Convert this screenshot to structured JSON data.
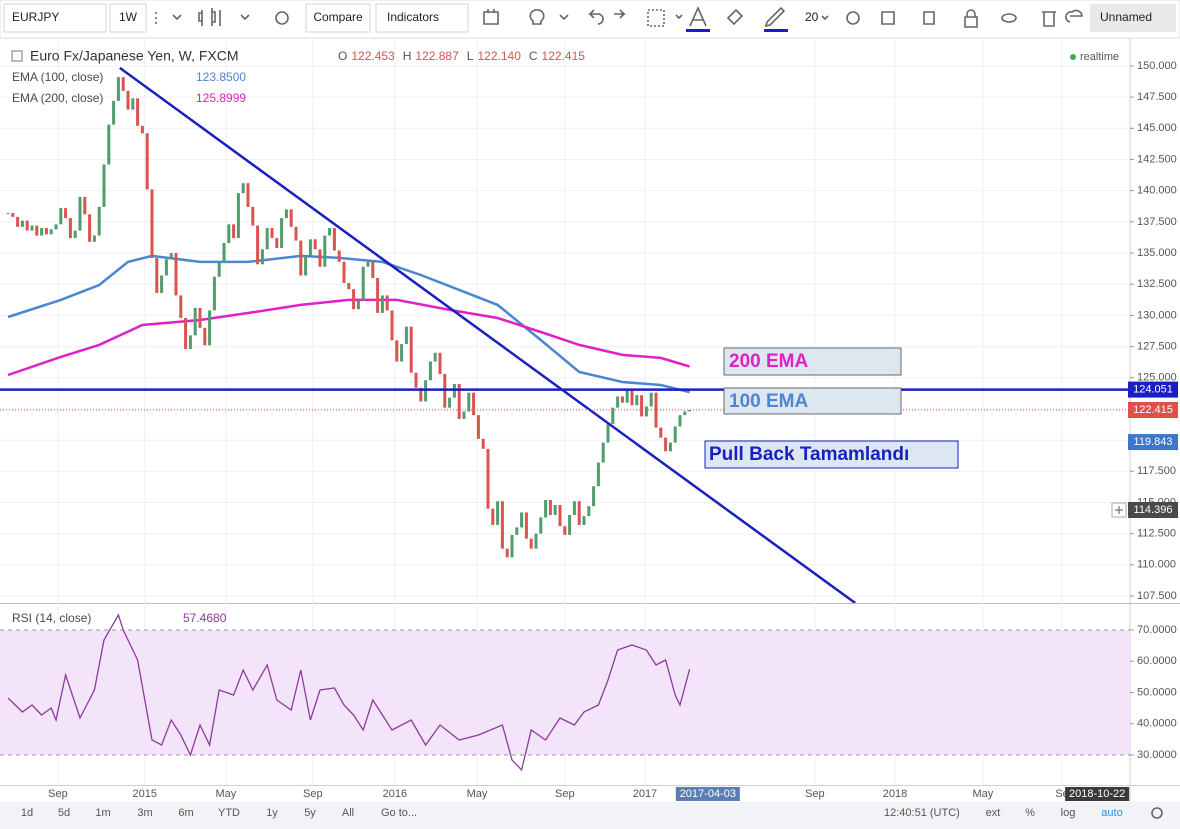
{
  "toolbar": {
    "symbol": "EURJPY",
    "interval": "1W",
    "compare": "Compare",
    "indicators": "Indicators",
    "size": "20",
    "layout": "Unnamed"
  },
  "chart_data": [
    {
      "type": "candlestick",
      "title": "Euro Fx/Japanese Yen, W, FXCM",
      "status": "realtime",
      "ohlc_names": [
        "O",
        "H",
        "L",
        "C"
      ],
      "ohlc": [
        "122.453",
        "122.887",
        "122.140",
        "122.415"
      ],
      "up_color": "#4f9c6c",
      "down_color": "#d9534f",
      "x": [
        0,
        1,
        2,
        3,
        4,
        5,
        6,
        7,
        8,
        9,
        10,
        11,
        12,
        13,
        14,
        15,
        16,
        17,
        18,
        19,
        20,
        21,
        22,
        23,
        24,
        25,
        26,
        27,
        28,
        29,
        30,
        31,
        32,
        33,
        34,
        35,
        36,
        37,
        38,
        39,
        40,
        41,
        42,
        43,
        44,
        45,
        46,
        47,
        48,
        49,
        50,
        51,
        52,
        53,
        54,
        55,
        56,
        57,
        58,
        59,
        60,
        61,
        62,
        63,
        64,
        65,
        66,
        67,
        68,
        69,
        70,
        71,
        72,
        73,
        74,
        75,
        76,
        77,
        78,
        79,
        80,
        81,
        82,
        83,
        84,
        85,
        86,
        87,
        88,
        89,
        90,
        91,
        92,
        93,
        94,
        95,
        96,
        97,
        98,
        99,
        100,
        101,
        102,
        103,
        104,
        105,
        106,
        107,
        108,
        109,
        110,
        111,
        112,
        113,
        114,
        115,
        116,
        117,
        118,
        119,
        120,
        121,
        122,
        123,
        124,
        125,
        126,
        127,
        128,
        129,
        130,
        131,
        132,
        133,
        134,
        135,
        136,
        137,
        138,
        139,
        140,
        141,
        142
      ],
      "closes": [
        138.2,
        137.9,
        137.1,
        137.6,
        136.8,
        137.2,
        136.4,
        137.0,
        136.5,
        136.9,
        137.3,
        138.6,
        137.8,
        136.2,
        136.8,
        139.5,
        138.1,
        135.9,
        136.4,
        138.7,
        142.1,
        145.3,
        147.2,
        149.1,
        148.0,
        146.5,
        147.4,
        145.2,
        144.6,
        140.1,
        134.6,
        131.8,
        133.2,
        134.5,
        135.0,
        131.6,
        129.8,
        127.3,
        128.4,
        130.6,
        129.0,
        127.6,
        130.4,
        133.1,
        134.2,
        135.8,
        137.3,
        136.2,
        139.8,
        140.6,
        138.7,
        137.2,
        134.1,
        135.3,
        137.0,
        136.2,
        135.4,
        137.8,
        138.5,
        137.1,
        136.0,
        133.2,
        134.8,
        136.1,
        135.3,
        133.9,
        136.4,
        137.0,
        135.2,
        134.3,
        132.6,
        132.1,
        130.5,
        131.2,
        133.9,
        134.3,
        133.0,
        130.2,
        131.6,
        130.4,
        128.0,
        126.3,
        127.7,
        129.1,
        125.4,
        124.2,
        123.1,
        124.8,
        126.3,
        127.0,
        125.3,
        122.6,
        123.4,
        124.5,
        121.7,
        122.3,
        123.8,
        122.0,
        120.1,
        119.3,
        114.5,
        113.2,
        115.1,
        111.3,
        110.6,
        112.4,
        113.0,
        114.2,
        112.1,
        111.3,
        112.5,
        113.8,
        115.2,
        114.0,
        114.8,
        113.1,
        112.4,
        114.0,
        115.1,
        113.2,
        113.9,
        114.7,
        116.3,
        118.2,
        119.8,
        121.3,
        122.6,
        123.5,
        123.0,
        124.0,
        122.8,
        123.6,
        121.9,
        122.7,
        123.8,
        121.0,
        120.2,
        119.1,
        119.8,
        121.1,
        122.0,
        122.3,
        122.415
      ],
      "series": [
        {
          "name": "EMA (100, close)",
          "color": "#4a86d4",
          "x": [
            0,
            11,
            19,
            25,
            30,
            40,
            50,
            61,
            69,
            78,
            86,
            94,
            102,
            111,
            119,
            128,
            136,
            142
          ],
          "values": [
            129.87,
            131.24,
            132.44,
            134.29,
            134.77,
            134.29,
            134.29,
            134.77,
            134.61,
            134.29,
            133.24,
            132.04,
            130.84,
            128.03,
            125.46,
            124.66,
            124.42,
            123.85
          ],
          "last_value": {
            "value": 123.85,
            "label": "123.8500"
          }
        },
        {
          "name": "EMA (200, close)",
          "color": "#e020c8",
          "x": [
            0,
            11,
            19,
            28,
            40,
            50,
            61,
            71,
            81,
            92,
            102,
            111,
            119,
            128,
            136,
            142
          ],
          "values": [
            125.22,
            126.67,
            127.63,
            129.23,
            129.63,
            130.19,
            130.84,
            131.24,
            131.24,
            130.44,
            129.79,
            128.67,
            127.63,
            126.83,
            126.59,
            125.8999
          ],
          "last_value": {
            "value": 125.8999,
            "label": "125.8999"
          }
        }
      ],
      "trend_line": {
        "color": "#1a1fc2",
        "x": [
          23.3,
          176.5
        ],
        "values": [
          149.84,
          106.94
        ]
      },
      "price_labels": [
        {
          "value": 124.051,
          "color": "#1a1fc2",
          "line": "solid"
        },
        {
          "value": 122.415,
          "color": "#e0504a",
          "line": "dotted"
        },
        {
          "value": 119.843,
          "color": "#3a78cf"
        },
        {
          "value": 114.396,
          "color": "#4a4a4a"
        }
      ],
      "annotations": [
        "200 EMA",
        "100 EMA",
        "Pull Back Tamamlandı"
      ],
      "annotation_colors": [
        "#e020c8",
        "#4a86d4",
        "#1a1fc2"
      ],
      "xlim": [
        0,
        234
      ],
      "xticks": [
        {
          "value": 10.4,
          "label": "Sep"
        },
        {
          "value": 28.5,
          "label": "2015"
        },
        {
          "value": 45.4,
          "label": "May"
        },
        {
          "value": 63.5,
          "label": "Sep"
        },
        {
          "value": 80.6,
          "label": "2016"
        },
        {
          "value": 97.7,
          "label": "May"
        },
        {
          "value": 116,
          "label": "Sep"
        },
        {
          "value": 132.7,
          "label": "2017"
        },
        {
          "value": 145.8,
          "label": "2017-04-03",
          "background": "#5b7db6"
        },
        {
          "value": 168.1,
          "label": "Sep"
        },
        {
          "value": 184.8,
          "label": "2018"
        },
        {
          "value": 203.1,
          "label": "May"
        },
        {
          "value": 219.6,
          "label": "Se"
        },
        {
          "value": 226.9,
          "label": "2018-10-22",
          "background": "#3a3a3a"
        }
      ],
      "ylim": [
        106.94,
        152.08
      ],
      "yticks": [
        {
          "value": 107.5,
          "label": "107.500"
        },
        {
          "value": 110,
          "label": "110.000"
        },
        {
          "value": 112.5,
          "label": "112.500"
        },
        {
          "value": 115,
          "label": "115.000"
        },
        {
          "value": 117.5,
          "label": "117.500"
        },
        {
          "value": 120,
          "label": "120.000"
        },
        {
          "value": 122.5,
          "label": "122.500"
        },
        {
          "value": 125,
          "label": "125.000"
        },
        {
          "value": 127.5,
          "label": "127.500"
        },
        {
          "value": 130,
          "label": "130.000"
        },
        {
          "value": 132.5,
          "label": "132.500"
        },
        {
          "value": 135,
          "label": "135.000"
        },
        {
          "value": 137.5,
          "label": "137.500"
        },
        {
          "value": 140,
          "label": "140.000"
        },
        {
          "value": 142.5,
          "label": "142.500"
        },
        {
          "value": 145,
          "label": "145.000"
        },
        {
          "value": 147.5,
          "label": "147.500"
        },
        {
          "value": 150,
          "label": "150.000"
        }
      ],
      "grid": true
    },
    {
      "type": "line",
      "title": "RSI (14, close)",
      "last_value": {
        "value": 57.468,
        "label": "57.4680"
      },
      "color": "#8e3aa0",
      "band": [
        30,
        70
      ],
      "band_color": "#f4e4f9",
      "x": [
        0,
        3,
        5,
        7,
        9,
        10,
        12,
        15,
        18,
        20,
        23,
        24,
        27,
        30,
        32,
        34,
        36,
        38,
        40,
        42,
        44,
        47,
        49,
        51,
        54,
        56,
        59,
        61,
        63,
        65,
        68,
        70,
        72,
        74,
        76,
        78,
        80,
        84,
        87,
        90,
        94,
        98,
        103,
        105,
        107,
        109,
        112,
        115,
        118,
        120,
        123,
        125,
        127,
        130,
        133,
        135,
        137,
        139,
        140,
        142
      ],
      "values": [
        48.24,
        43.76,
        46,
        42.8,
        45.04,
        41.2,
        55.6,
        41.84,
        50.8,
        66.8,
        74.8,
        70,
        60.4,
        34.8,
        33.2,
        41.2,
        36.4,
        30,
        39.6,
        33.2,
        50.8,
        49.2,
        57.2,
        50.8,
        58.8,
        47.6,
        44.4,
        57.2,
        41.2,
        50.8,
        51.44,
        46,
        42.8,
        38,
        47.6,
        42.8,
        38,
        41.2,
        33.2,
        39.6,
        34.8,
        36.4,
        39.6,
        28.4,
        25.2,
        38,
        34.8,
        41.84,
        39.6,
        43.76,
        46,
        54,
        63.6,
        65.2,
        63.6,
        58.8,
        60.4,
        49.2,
        46,
        57.468
      ],
      "ylim": [
        20.4,
        78.32
      ],
      "yticks": [
        {
          "value": 70,
          "label": "70.0000"
        },
        {
          "value": 60,
          "label": "60.0000"
        },
        {
          "value": 50,
          "label": "50.0000"
        },
        {
          "value": 40,
          "label": "40.0000"
        },
        {
          "value": 30,
          "label": "30.0000"
        }
      ]
    }
  ],
  "bottom_bar": {
    "ranges": [
      "1d",
      "5d",
      "1m",
      "3m",
      "6m",
      "YTD",
      "1y",
      "5y",
      "All"
    ],
    "goto": "Go to...",
    "time": "12:40:51 (UTC)",
    "options": [
      "ext",
      "%",
      "log",
      "auto"
    ]
  }
}
